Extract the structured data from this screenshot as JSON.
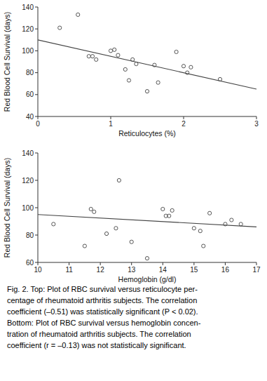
{
  "chart_data": [
    {
      "type": "scatter",
      "xlabel": "Reticulocytes (%)",
      "ylabel": "Red Blood Cell Survival (days)",
      "xlim": [
        0,
        3
      ],
      "ylim": [
        40,
        140
      ],
      "xticks": [
        0,
        1,
        2,
        3
      ],
      "yticks": [
        40,
        60,
        80,
        100,
        120,
        140
      ],
      "grid": false,
      "series": [
        {
          "type": "scatter",
          "marker": "open-circle",
          "color": "#555555",
          "x": [
            0.3,
            0.55,
            0.7,
            0.75,
            0.8,
            1.0,
            1.05,
            1.1,
            1.2,
            1.25,
            1.3,
            1.35,
            1.5,
            1.6,
            1.65,
            1.9,
            2.0,
            2.05,
            2.1,
            2.5
          ],
          "values": [
            121,
            133,
            95,
            95,
            92,
            100,
            101,
            96,
            83,
            73,
            92,
            88,
            63,
            87,
            71,
            99,
            86,
            80,
            85,
            74
          ]
        },
        {
          "type": "line",
          "line_style": "solid",
          "color": "#444444",
          "x": [
            0,
            3
          ],
          "values": [
            110,
            65
          ]
        }
      ]
    },
    {
      "type": "scatter",
      "xlabel": "Hemoglobin (g/dl)",
      "ylabel": "Red Blood Cell Survival (days)",
      "xlim": [
        10,
        17
      ],
      "ylim": [
        60,
        140
      ],
      "xticks": [
        10,
        11,
        12,
        13,
        14,
        15,
        16,
        17
      ],
      "yticks": [
        60,
        80,
        100,
        120,
        140
      ],
      "grid": false,
      "series": [
        {
          "type": "scatter",
          "marker": "open-circle",
          "color": "#555555",
          "x": [
            10.5,
            11.5,
            11.7,
            11.8,
            12.2,
            12.5,
            12.6,
            13.0,
            13.5,
            14.0,
            14.1,
            14.2,
            14.3,
            15.0,
            15.2,
            15.3,
            15.5,
            16.0,
            16.2,
            16.5
          ],
          "values": [
            88,
            72,
            99,
            97,
            81,
            85,
            120,
            75,
            63,
            99,
            94,
            94,
            98,
            85,
            83,
            72,
            96,
            88,
            91,
            88
          ]
        },
        {
          "type": "line",
          "line_style": "solid",
          "color": "#444444",
          "x": [
            10,
            17
          ],
          "values": [
            95,
            86
          ]
        }
      ],
      "annotations": [
        "Fig. 2.   Top: Plot of RBC survival versus reticulocyte per-",
        "centage of rheumatoid arthritis subjects. The correlation",
        "coefficient (–0.51) was statistically significant (P < 0.02).",
        "Bottom: Plot of RBC survival versus hemoglobin concen-",
        "tration of rheumatoid arthritis subjects. The correlation",
        "coefficient (r = –0.13) was not statistically significant."
      ]
    }
  ]
}
